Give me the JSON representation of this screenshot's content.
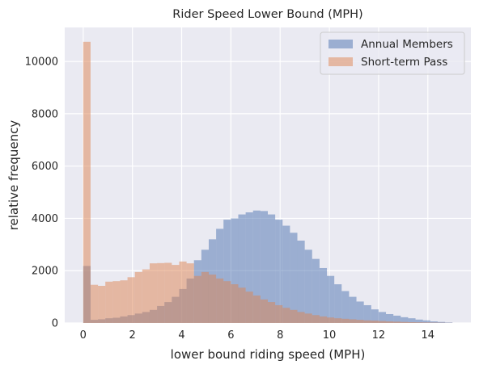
{
  "chart_data": {
    "type": "bar",
    "title": "Rider Speed Lower Bound (MPH)",
    "xlabel": "lower bound riding speed (MPH)",
    "ylabel": "relative frequency",
    "xlim": [
      -0.75,
      15.75
    ],
    "ylim": [
      0,
      11300
    ],
    "xticks": [
      0,
      2,
      4,
      6,
      8,
      10,
      12,
      14
    ],
    "yticks": [
      0,
      2000,
      4000,
      6000,
      8000,
      10000
    ],
    "grid": true,
    "legend_position": "top-right",
    "bin_start": 0,
    "bin_width": 0.3,
    "series": [
      {
        "name": "Annual Members",
        "color": "#4c72b0",
        "values": [
          2180,
          120,
          140,
          180,
          200,
          250,
          300,
          360,
          420,
          500,
          650,
          800,
          1000,
          1300,
          1700,
          2400,
          2800,
          3200,
          3600,
          3950,
          4000,
          4150,
          4230,
          4300,
          4280,
          4150,
          3950,
          3720,
          3450,
          3150,
          2800,
          2450,
          2100,
          1800,
          1480,
          1220,
          1000,
          820,
          680,
          520,
          420,
          340,
          280,
          220,
          180,
          130,
          100,
          60,
          40,
          20
        ]
      },
      {
        "name": "Short-term Pass",
        "color": "#dd8452",
        "values": [
          10750,
          1460,
          1420,
          1580,
          1600,
          1630,
          1750,
          1950,
          2050,
          2280,
          2290,
          2300,
          2220,
          2350,
          2280,
          1800,
          1950,
          1850,
          1700,
          1600,
          1480,
          1350,
          1200,
          1050,
          900,
          800,
          680,
          580,
          500,
          420,
          360,
          300,
          250,
          210,
          180,
          160,
          140,
          120,
          100,
          90,
          75,
          60,
          50,
          40,
          30,
          25,
          20,
          15,
          10,
          5
        ]
      }
    ]
  }
}
